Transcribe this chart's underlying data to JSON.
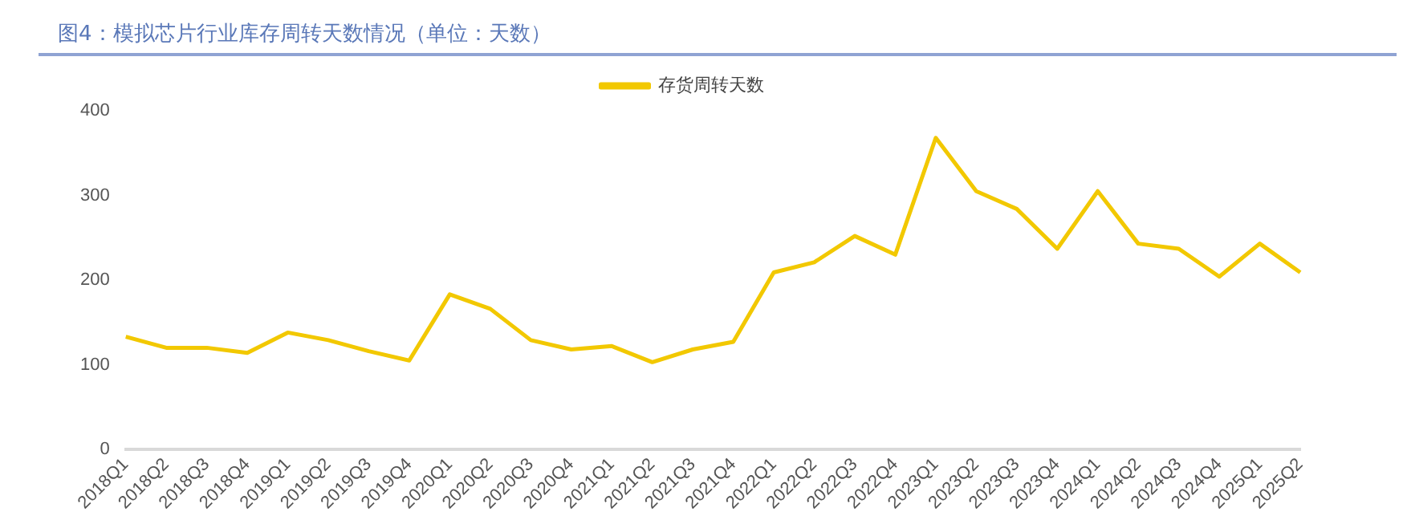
{
  "chart_data": {
    "type": "line",
    "title": "图4：模拟芯片行业库存周转天数情况（单位：天数）",
    "categories": [
      "2018Q1",
      "2018Q2",
      "2018Q3",
      "2018Q4",
      "2019Q1",
      "2019Q2",
      "2019Q3",
      "2019Q4",
      "2020Q1",
      "2020Q2",
      "2020Q3",
      "2020Q4",
      "2021Q1",
      "2021Q2",
      "2021Q3",
      "2021Q4",
      "2022Q1",
      "2022Q2",
      "2022Q3",
      "2022Q4",
      "2023Q1",
      "2023Q2",
      "2023Q3",
      "2023Q4",
      "2024Q1",
      "2024Q2",
      "2024Q3",
      "2024Q4",
      "2025Q1",
      "2025Q2"
    ],
    "series": [
      {
        "name": "存货周转天数",
        "color": "#f2c800",
        "values": [
          133,
          120,
          120,
          114,
          138,
          129,
          116,
          105,
          183,
          166,
          129,
          118,
          122,
          103,
          118,
          127,
          209,
          221,
          252,
          230,
          368,
          305,
          284,
          237,
          305,
          243,
          237,
          204,
          243,
          209
        ]
      }
    ],
    "ylim": [
      0,
      400
    ],
    "yticks": [
      0,
      100,
      200,
      300,
      400
    ],
    "grid": false,
    "legend": "top",
    "marker": "none",
    "line_style": "solid"
  }
}
